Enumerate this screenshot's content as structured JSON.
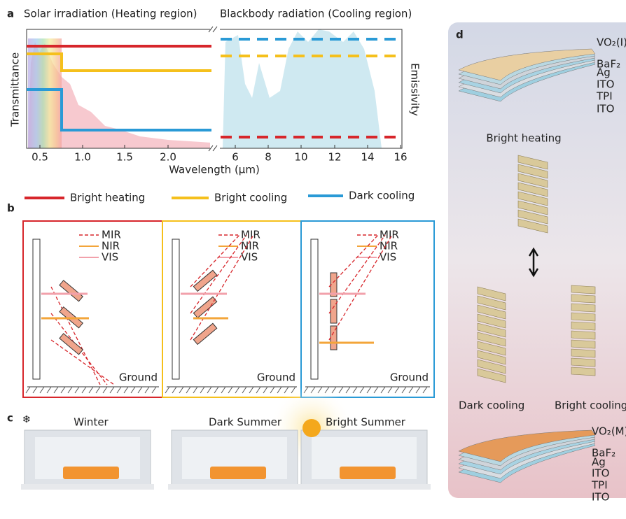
{
  "panel_a": {
    "label": "a",
    "left_title": "Solar irradiation (Heating region)",
    "right_title": "Blackbody radiation (Cooling region)",
    "y_left": "Transmittance",
    "y_right": "Emissivity",
    "x_label": "Wavelength (μm)",
    "x_ticks_left": [
      "0.5",
      "1.0",
      "1.5",
      "2.0"
    ],
    "x_ticks_right": [
      "6",
      "8",
      "10",
      "12",
      "14",
      "16"
    ]
  },
  "legend": [
    {
      "label": "Bright heating",
      "color": "#d7262b"
    },
    {
      "label": "Bright cooling",
      "color": "#f5c01c"
    },
    {
      "label": "Dark cooling",
      "color": "#2a9ad6"
    }
  ],
  "panel_b": {
    "label": "b",
    "wave_labels": [
      "MIR",
      "NIR",
      "VIS"
    ],
    "ground": "Ground"
  },
  "panel_c": {
    "label": "c",
    "scenes": [
      "Winter",
      "Dark Summer",
      "Bright Summer"
    ]
  },
  "panel_d": {
    "label": "d",
    "top_layers": [
      "VO₂(I)",
      "BaF₂",
      "Ag",
      "ITO",
      "TPI",
      "ITO"
    ],
    "top_caption": "Bright heating",
    "states": [
      "Dark cooling",
      "Bright cooling"
    ],
    "bottom_layers": [
      "VO₂(M)",
      "BaF₂",
      "Ag",
      "ITO",
      "TPI",
      "ITO"
    ]
  }
}
